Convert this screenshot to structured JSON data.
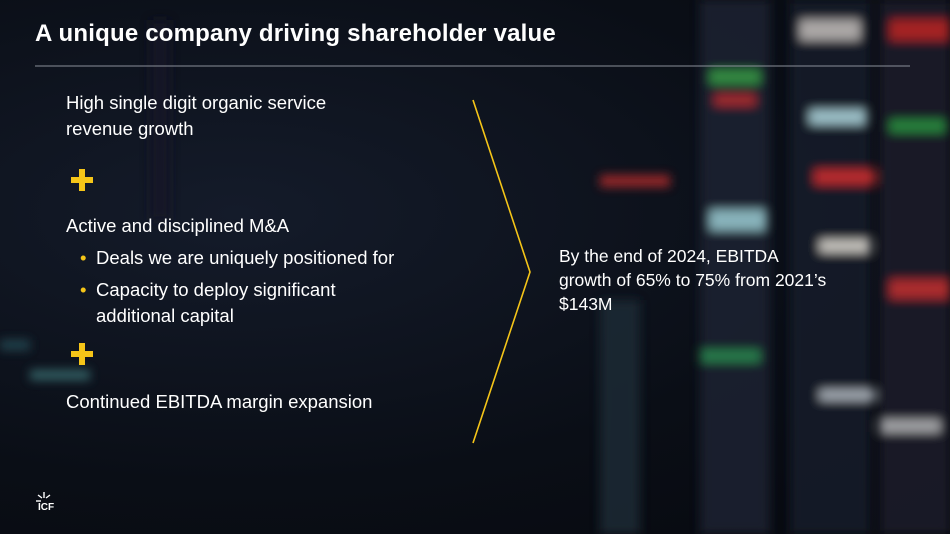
{
  "header": {
    "title": "A unique company driving shareholder value"
  },
  "points": [
    {
      "text": "High single digit organic service revenue growth"
    },
    {
      "text": "Active and disciplined M&A",
      "bullets": [
        "Deals we are uniquely positioned for",
        "Capacity to deploy significant additional capital"
      ]
    },
    {
      "text": "Continued EBITDA margin expansion"
    }
  ],
  "result": "By the end of 2024, EBITDA growth of 65% to 75% from 2021’s $143M",
  "logo": "ICF"
}
